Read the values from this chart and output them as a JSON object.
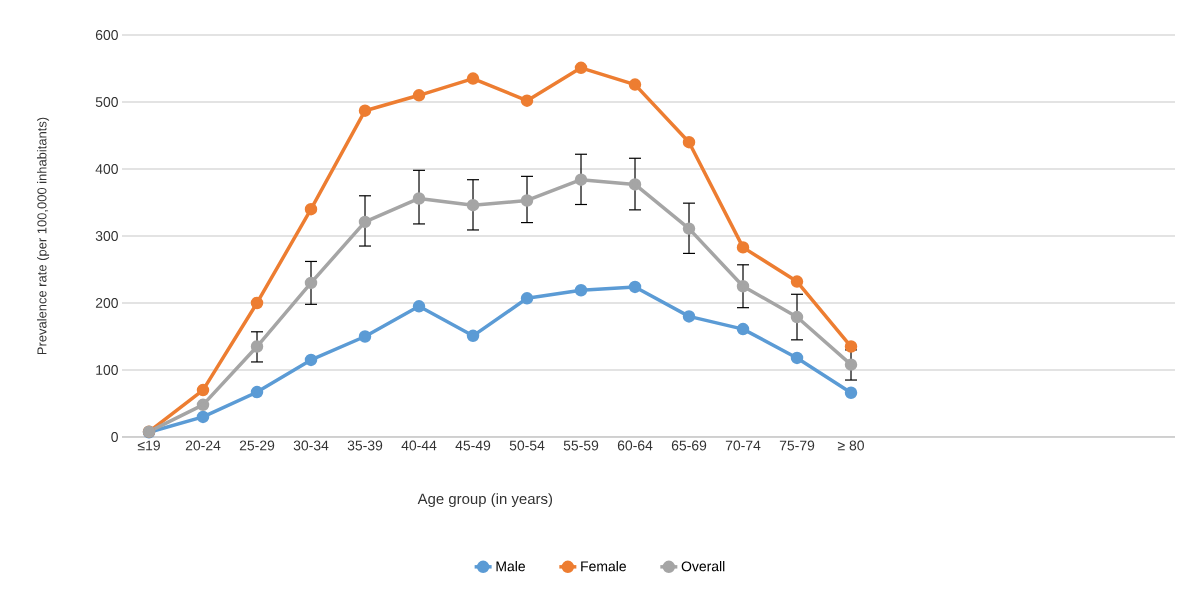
{
  "chart_data": {
    "type": "line",
    "xlabel": "Age group (in years)",
    "ylabel": "Prevalence rate (per 100,000 inhabitants)",
    "categories": [
      "≤19",
      "20-24",
      "25-29",
      "30-34",
      "35-39",
      "40-44",
      "45-49",
      "50-54",
      "55-59",
      "60-64",
      "65-69",
      "70-74",
      "75-79",
      "≥ 80"
    ],
    "series": [
      {
        "name": "Male",
        "color": "#5b9bd5",
        "values": [
          7,
          30,
          67,
          115,
          150,
          195,
          151,
          207,
          219,
          224,
          180,
          161,
          118,
          66
        ]
      },
      {
        "name": "Female",
        "color": "#ed7d31",
        "values": [
          8,
          70,
          200,
          340,
          487,
          510,
          535,
          502,
          551,
          526,
          440,
          283,
          232,
          135
        ]
      },
      {
        "name": "Overall",
        "color": "#a5a5a5",
        "values": [
          8,
          48,
          135,
          230,
          321,
          356,
          346,
          353,
          384,
          377,
          311,
          225,
          179,
          108
        ],
        "errors": [
          null,
          null,
          [
            112,
            157
          ],
          [
            198,
            262
          ],
          [
            285,
            360
          ],
          [
            318,
            398
          ],
          [
            309,
            384
          ],
          [
            320,
            389
          ],
          [
            347,
            422
          ],
          [
            339,
            416
          ],
          [
            274,
            349
          ],
          [
            193,
            257
          ],
          [
            145,
            213
          ],
          [
            85,
            130
          ]
        ]
      }
    ],
    "ylim": [
      0,
      600
    ],
    "yticks": [
      0,
      100,
      200,
      300,
      400,
      500,
      600
    ],
    "grid": "y",
    "legend": "bottom",
    "marker": "circle",
    "line_style": "solid"
  }
}
